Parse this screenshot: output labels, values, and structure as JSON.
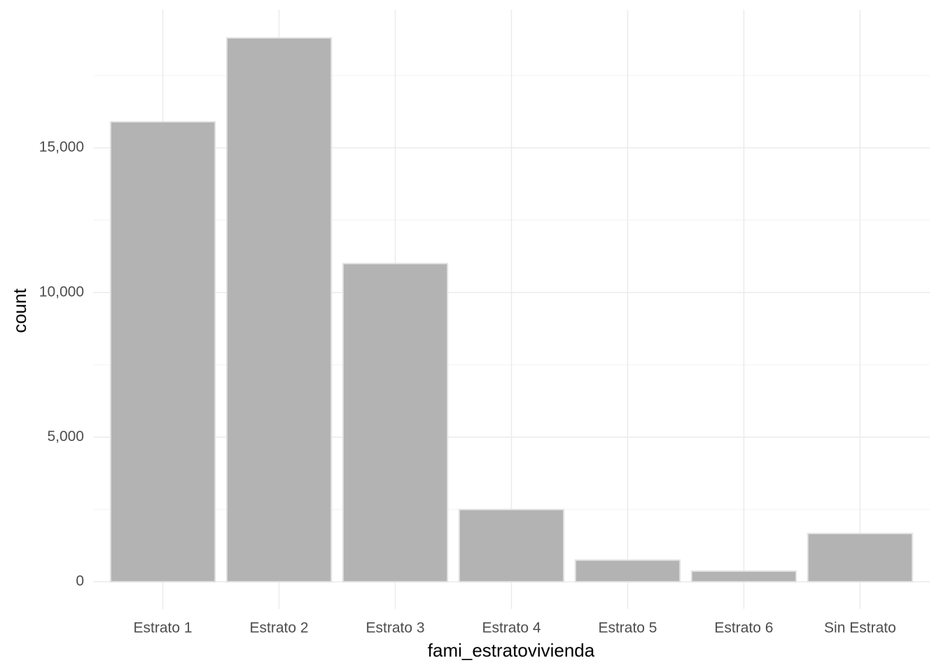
{
  "chart_data": {
    "type": "bar",
    "x_label": "fami_estratovivienda",
    "y_label": "count",
    "categories": [
      "Estrato 1",
      "Estrato 2",
      "Estrato 3",
      "Estrato 4",
      "Estrato 5",
      "Estrato 6",
      "Sin Estrato"
    ],
    "values": [
      15900,
      18800,
      11000,
      2500,
      750,
      370,
      1670
    ],
    "color": "#b3b3b3",
    "ylim": [
      -940,
      19770
    ],
    "yticks": [
      0,
      {
        "value": 5000,
        "label": "5,000"
      },
      {
        "value": 10000,
        "label": "10,000"
      },
      {
        "value": 15000,
        "label": "15,000"
      }
    ],
    "minor_yticks": [
      2500,
      7500,
      12500,
      17500
    ],
    "grid": true
  }
}
